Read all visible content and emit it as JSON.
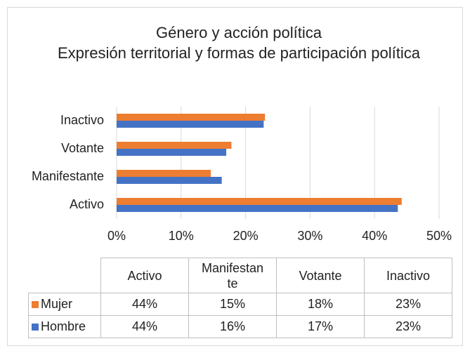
{
  "chart_data": {
    "type": "bar",
    "orientation": "horizontal",
    "title": "Género y acción política",
    "subtitle": "Expresión territorial y formas de participación política",
    "categories": [
      "Activo",
      "Manifestante",
      "Votante",
      "Inactivo"
    ],
    "series": [
      {
        "name": "Mujer",
        "color": "#ed7d31",
        "values": [
          44.2,
          14.6,
          17.8,
          23.0
        ],
        "value_labels": [
          "44%",
          "15%",
          "18%",
          "23%"
        ]
      },
      {
        "name": "Hombre",
        "color": "#4472c4",
        "values": [
          43.6,
          16.3,
          17.0,
          22.8
        ],
        "value_labels": [
          "44%",
          "16%",
          "17%",
          "23%"
        ]
      }
    ],
    "xlim": [
      0,
      50
    ],
    "xticks": [
      {
        "value": 0,
        "label": "0%"
      },
      {
        "value": 10,
        "label": "10%"
      },
      {
        "value": 20,
        "label": "20%"
      },
      {
        "value": 30,
        "label": "30%"
      },
      {
        "value": 40,
        "label": "40%"
      },
      {
        "value": 50,
        "label": "50%"
      }
    ],
    "grid": true
  }
}
